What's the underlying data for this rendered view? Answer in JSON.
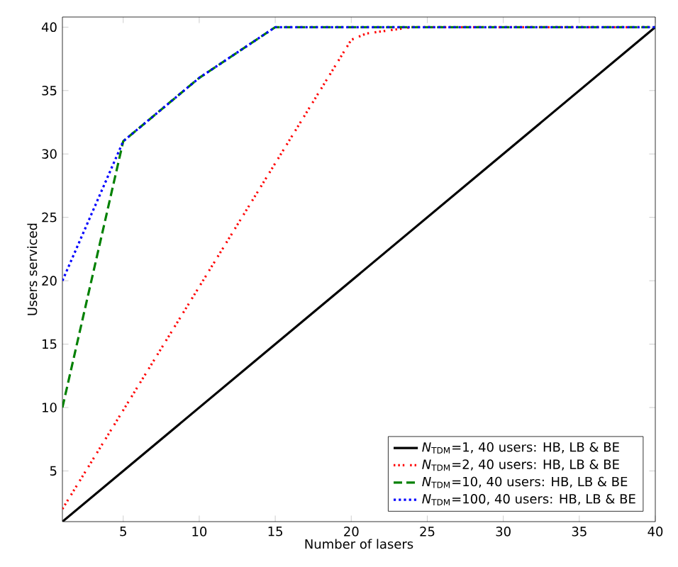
{
  "chart_data": {
    "type": "line",
    "xlabel": "Number of lasers",
    "ylabel": "Users serviced",
    "xlim": [
      1,
      40
    ],
    "ylim": [
      1,
      40.8
    ],
    "xticks": [
      5,
      10,
      15,
      20,
      25,
      30,
      35,
      40
    ],
    "yticks": [
      5,
      10,
      15,
      20,
      25,
      30,
      35,
      40
    ],
    "grid": false,
    "legend": "bottom right",
    "marker": "none",
    "series": [
      {
        "name": "*N*$_{TDM}$=1, 40 users: HB, LB & BE",
        "color": "#000000",
        "line_style": "solid",
        "x": [
          1,
          40
        ],
        "values": [
          1,
          40
        ]
      },
      {
        "name": "*N*$_{TDM}$=2, 40 users: HB, LB & BE",
        "color": "#ff0000",
        "line_style": "dashdot",
        "x": [
          1,
          20,
          21,
          24,
          40
        ],
        "values": [
          2,
          39,
          39.5,
          40,
          40
        ]
      },
      {
        "name": "*N*$_{TDM}$=10, 40 users: HB, LB & BE",
        "color": "#008000",
        "line_style": "dashed",
        "x": [
          1,
          5,
          10,
          15,
          40
        ],
        "values": [
          10,
          31,
          36,
          40,
          40
        ]
      },
      {
        "name": "*N*$_{TDM}$=100, 40 users: HB, LB & BE",
        "color": "#0000ff",
        "line_style": "dotted",
        "x": [
          1,
          5,
          10,
          15,
          40
        ],
        "values": [
          20,
          31,
          36,
          40,
          40
        ]
      }
    ]
  }
}
